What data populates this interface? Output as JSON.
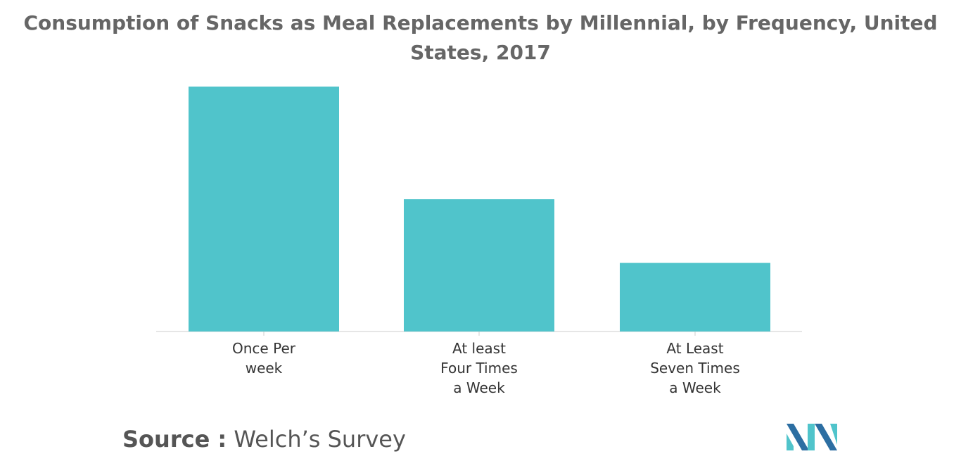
{
  "chart_data": {
    "type": "bar",
    "title": "Consumption of Snacks as Meal Replacements by Millennial, by Frequency, United States, 2017",
    "categories": [
      "Once Per\nweek",
      "At least\nFour Times\na Week",
      "At Least\nSeven Times\na Week"
    ],
    "values": [
      100,
      54,
      28
    ],
    "ylim": [
      0,
      100
    ],
    "xlabel": "",
    "ylabel": "",
    "grid": false,
    "bar_color": "#50C4CB",
    "axis_color": "#CCCCCC"
  },
  "source": {
    "label": "Source :",
    "text": "Welch’s Survey"
  },
  "logo": {
    "icon": "mordor-intelligence-logo",
    "colors": [
      "#2C6EA2",
      "#50C4CB"
    ]
  }
}
